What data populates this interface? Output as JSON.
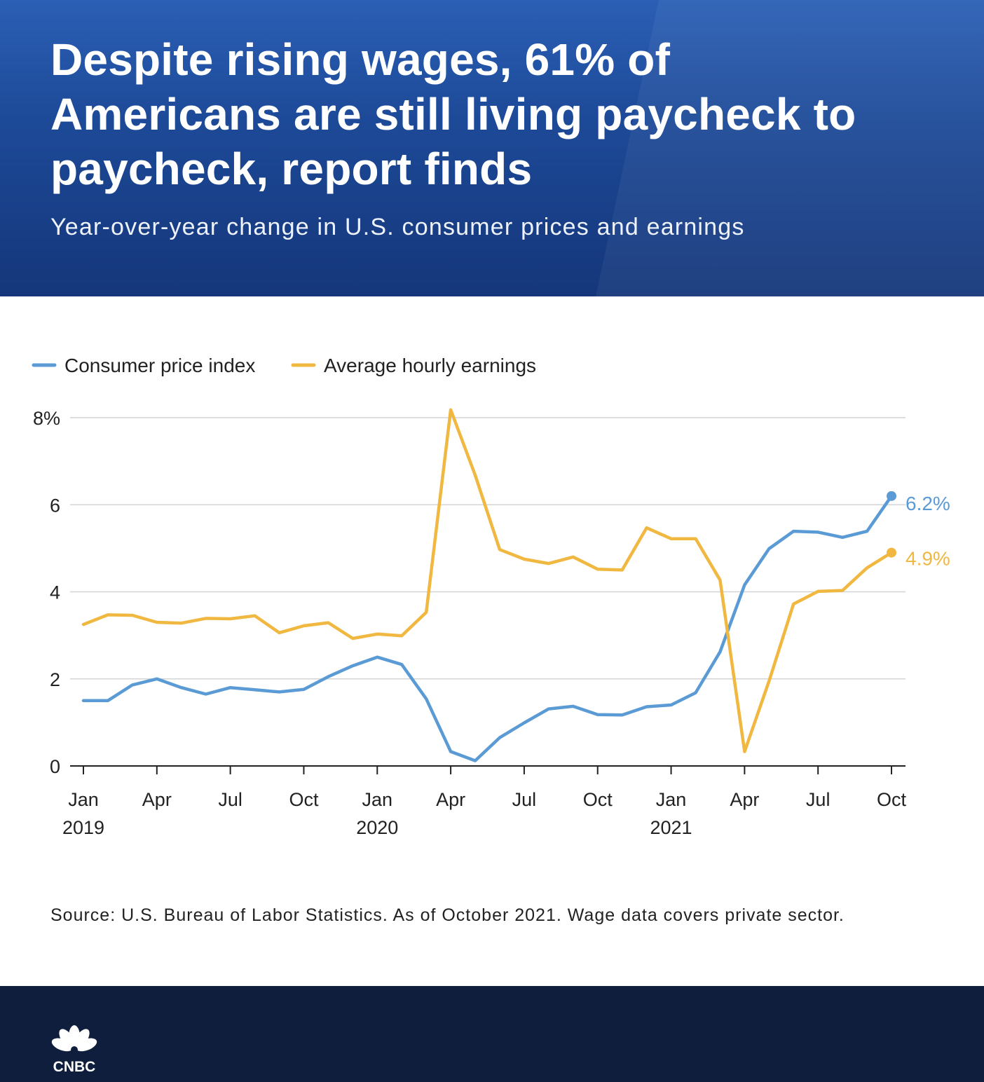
{
  "header": {
    "title": "Despite rising wages, 61% of Americans are still living paycheck to paycheck, report finds",
    "subtitle": "Year-over-year change in U.S. consumer prices and earnings"
  },
  "chart_data": {
    "type": "line",
    "title": "Despite rising wages, 61% of Americans are still living paycheck to paycheck, report finds",
    "subtitle": "Year-over-year change in U.S. consumer prices and earnings",
    "xlabel": "",
    "ylabel": "",
    "ylim": [
      0,
      8
    ],
    "y_ticks": [
      0,
      2,
      4,
      6,
      8
    ],
    "y_tick_labels": [
      "0",
      "2",
      "4",
      "6",
      "8%"
    ],
    "grid": true,
    "legend_position": "top-left",
    "x": [
      "Jan 2019",
      "Feb 2019",
      "Mar 2019",
      "Apr 2019",
      "May 2019",
      "Jun 2019",
      "Jul 2019",
      "Aug 2019",
      "Sep 2019",
      "Oct 2019",
      "Nov 2019",
      "Dec 2019",
      "Jan 2020",
      "Feb 2020",
      "Mar 2020",
      "Apr 2020",
      "May 2020",
      "Jun 2020",
      "Jul 2020",
      "Aug 2020",
      "Sep 2020",
      "Oct 2020",
      "Nov 2020",
      "Dec 2020",
      "Jan 2021",
      "Feb 2021",
      "Mar 2021",
      "Apr 2021",
      "May 2021",
      "Jun 2021",
      "Jul 2021",
      "Aug 2021",
      "Sep 2021",
      "Oct 2021"
    ],
    "x_ticks": [
      {
        "index": 0,
        "month": "Jan",
        "year": "2019"
      },
      {
        "index": 3,
        "month": "Apr",
        "year": ""
      },
      {
        "index": 6,
        "month": "Jul",
        "year": ""
      },
      {
        "index": 9,
        "month": "Oct",
        "year": ""
      },
      {
        "index": 12,
        "month": "Jan",
        "year": "2020"
      },
      {
        "index": 15,
        "month": "Apr",
        "year": ""
      },
      {
        "index": 18,
        "month": "Jul",
        "year": ""
      },
      {
        "index": 21,
        "month": "Oct",
        "year": ""
      },
      {
        "index": 24,
        "month": "Jan",
        "year": "2021"
      },
      {
        "index": 27,
        "month": "Apr",
        "year": ""
      },
      {
        "index": 30,
        "month": "Jul",
        "year": ""
      },
      {
        "index": 33,
        "month": "Oct",
        "year": ""
      }
    ],
    "series": [
      {
        "name": "Consumer price index",
        "color": "#5b9bd5",
        "end_label": "6.2%",
        "values": [
          1.5,
          1.5,
          1.86,
          2.0,
          1.8,
          1.65,
          1.8,
          1.75,
          1.7,
          1.76,
          2.05,
          2.3,
          2.5,
          2.33,
          1.54,
          0.33,
          0.12,
          0.65,
          0.99,
          1.31,
          1.37,
          1.18,
          1.17,
          1.36,
          1.4,
          1.68,
          2.62,
          4.16,
          4.99,
          5.39,
          5.37,
          5.25,
          5.39,
          6.2
        ]
      },
      {
        "name": "Average hourly earnings",
        "color": "#f0b840",
        "end_label": "4.9%",
        "values": [
          3.25,
          3.47,
          3.46,
          3.3,
          3.28,
          3.39,
          3.38,
          3.45,
          3.06,
          3.22,
          3.29,
          2.93,
          3.03,
          2.99,
          3.53,
          8.18,
          6.68,
          4.97,
          4.75,
          4.65,
          4.8,
          4.52,
          4.5,
          5.47,
          5.22,
          5.22,
          4.27,
          0.33,
          1.95,
          3.72,
          4.01,
          4.03,
          4.55,
          4.9
        ]
      }
    ]
  },
  "source": "Source: U.S. Bureau of Labor Statistics. As of October 2021. Wage data covers private sector.",
  "footer": {
    "logo_text": "CNBC"
  }
}
